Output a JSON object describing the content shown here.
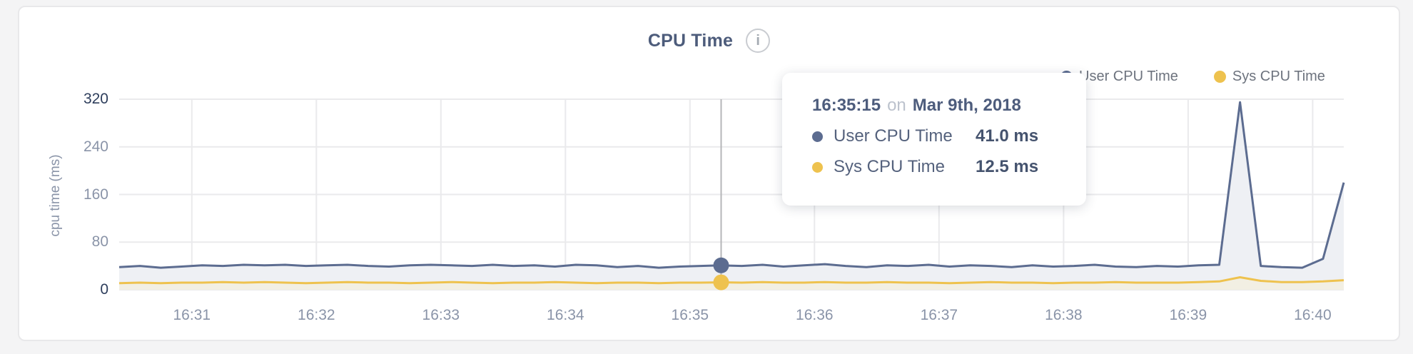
{
  "header": {
    "title": "CPU Time",
    "info_glyph": "i"
  },
  "legend": [
    {
      "label": "User CPU Time",
      "color": "#5c6c90"
    },
    {
      "label": "Sys CPU Time",
      "color": "#eec24e"
    }
  ],
  "tooltip": {
    "time": "16:35:15",
    "on_word": "on",
    "date": "Mar 9th, 2018",
    "rows": [
      {
        "label": "User CPU Time",
        "value": "41.0 ms",
        "color": "#5c6c90"
      },
      {
        "label": "Sys CPU Time",
        "value": "12.5 ms",
        "color": "#eec24e"
      }
    ]
  },
  "chart_data": {
    "type": "area",
    "title": "CPU Time",
    "xlabel": "",
    "ylabel": "cpu time (ms)",
    "ylim": [
      0,
      320
    ],
    "y_ticks": [
      0,
      80,
      160,
      240,
      320
    ],
    "x_ticks": [
      "16:31",
      "16:32",
      "16:33",
      "16:34",
      "16:35",
      "16:36",
      "16:37",
      "16:38",
      "16:39",
      "16:40"
    ],
    "grid": true,
    "legend_position": "top-right",
    "x": [
      "16:30:25",
      "16:30:35",
      "16:30:45",
      "16:30:55",
      "16:31:05",
      "16:31:15",
      "16:31:25",
      "16:31:35",
      "16:31:45",
      "16:31:55",
      "16:32:05",
      "16:32:15",
      "16:32:25",
      "16:32:35",
      "16:32:45",
      "16:32:55",
      "16:33:05",
      "16:33:15",
      "16:33:25",
      "16:33:35",
      "16:33:45",
      "16:33:55",
      "16:34:05",
      "16:34:15",
      "16:34:25",
      "16:34:35",
      "16:34:45",
      "16:34:55",
      "16:35:05",
      "16:35:15",
      "16:35:25",
      "16:35:35",
      "16:35:45",
      "16:35:55",
      "16:36:05",
      "16:36:15",
      "16:36:25",
      "16:36:35",
      "16:36:45",
      "16:36:55",
      "16:37:05",
      "16:37:15",
      "16:37:25",
      "16:37:35",
      "16:37:45",
      "16:37:55",
      "16:38:05",
      "16:38:15",
      "16:38:25",
      "16:38:35",
      "16:38:45",
      "16:38:55",
      "16:39:05",
      "16:39:15",
      "16:39:25",
      "16:39:35",
      "16:39:45",
      "16:39:55",
      "16:40:05",
      "16:40:15"
    ],
    "series": [
      {
        "name": "User CPU Time",
        "color": "#5c6c90",
        "fill": "#eef0f4",
        "values": [
          38,
          40,
          37,
          39,
          41,
          40,
          42,
          41,
          42,
          40,
          41,
          42,
          40,
          39,
          41,
          42,
          41,
          40,
          42,
          40,
          41,
          39,
          42,
          41,
          38,
          40,
          37,
          39,
          40,
          41,
          40,
          42,
          39,
          41,
          43,
          40,
          38,
          41,
          40,
          42,
          39,
          41,
          40,
          38,
          41,
          39,
          40,
          42,
          39,
          38,
          40,
          39,
          41,
          42,
          315,
          40,
          38,
          37,
          52,
          180
        ]
      },
      {
        "name": "Sys CPU Time",
        "color": "#eec24e",
        "fill": "#f2efe3",
        "values": [
          11,
          12,
          11,
          12,
          12,
          13,
          12,
          13,
          12,
          11,
          12,
          13,
          12,
          12,
          11,
          12,
          13,
          12,
          11,
          12,
          12,
          13,
          12,
          11,
          12,
          12,
          11,
          12,
          12,
          12.5,
          12,
          13,
          12,
          12,
          13,
          12,
          12,
          13,
          12,
          12,
          11,
          12,
          13,
          12,
          12,
          11,
          12,
          12,
          13,
          12,
          12,
          12,
          13,
          14,
          21,
          15,
          13,
          13,
          14,
          16
        ]
      }
    ],
    "highlight": {
      "x": "16:35:15",
      "date": "Mar 9th, 2018",
      "values": [
        41.0,
        12.5
      ]
    },
    "colors": {
      "grid": "#eaeaec",
      "crosshair": "#b5b6b8",
      "tick_label": "#8a94a8",
      "boundary_tick_label": "#2e3e5c"
    }
  }
}
